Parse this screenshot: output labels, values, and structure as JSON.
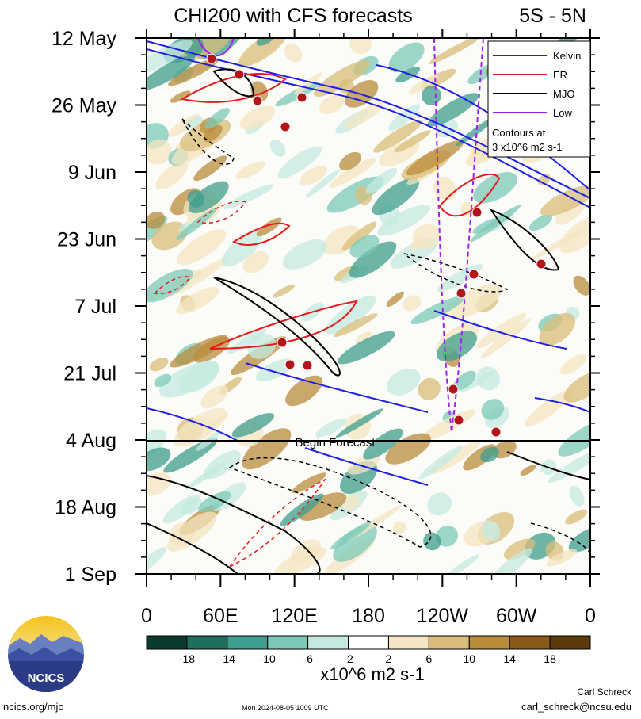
{
  "chart_data": {
    "type": "heatmap",
    "title": "CHI200 with CFS forecasts",
    "region": "5S - 5N",
    "y_ticks": [
      "12 May",
      "26 May",
      "9 Jun",
      "23 Jun",
      "7 Jul",
      "21 Jul",
      "4 Aug",
      "18 Aug",
      "1 Sep"
    ],
    "x_ticks": [
      "0",
      "60E",
      "120E",
      "180",
      "120W",
      "60W",
      "0"
    ],
    "forecast_label": "Begin Forecast",
    "forecast_start": "4 Aug",
    "legend": {
      "items": [
        {
          "name": "Kelvin",
          "color": "#1f1fe6"
        },
        {
          "name": "ER",
          "color": "#e61a1a"
        },
        {
          "name": "MJO",
          "color": "#000000"
        },
        {
          "name": "Low",
          "color": "#a020f0"
        }
      ],
      "note_line1": "Contours at",
      "note_line2": "3 x10^6 m2 s-1"
    },
    "colorbar": {
      "colors": [
        "#0b3b2e",
        "#1f6e5e",
        "#3f9e8e",
        "#7cc9b8",
        "#c4e9e0",
        "#ffffff",
        "#f4e6c2",
        "#d9bd7a",
        "#b98c3c",
        "#8a5a18",
        "#5c3a0c"
      ],
      "tick_labels": [
        "-18",
        "-14",
        "-10",
        "-6",
        "-2",
        "2",
        "6",
        "10",
        "14",
        "18"
      ],
      "units": "x10^6 m2 s-1"
    }
  },
  "footer": {
    "logo_text": "NCICS",
    "site": "ncics.org/mjo",
    "timestamp": "Mon 2024-08-05 1009 UTC",
    "author": "Carl Schreck",
    "email": "carl_schreck@ncsu.edu"
  }
}
